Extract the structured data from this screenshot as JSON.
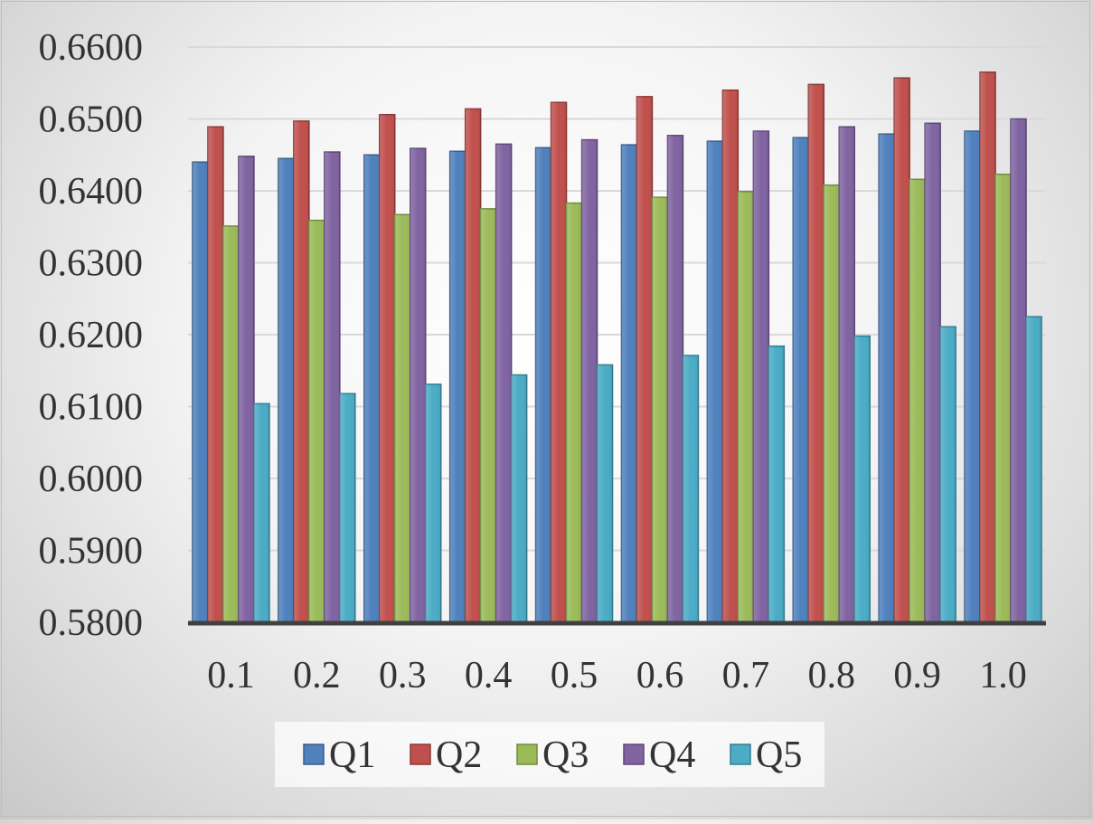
{
  "chart_data": {
    "type": "bar",
    "categories": [
      "0.1",
      "0.2",
      "0.3",
      "0.4",
      "0.5",
      "0.6",
      "0.7",
      "0.8",
      "0.9",
      "1.0"
    ],
    "series": [
      {
        "name": "Q1",
        "values": [
          0.644,
          0.6445,
          0.645,
          0.6455,
          0.646,
          0.6464,
          0.6469,
          0.6474,
          0.6479,
          0.6483
        ],
        "color": "#4F81BD",
        "border": "#385D8A"
      },
      {
        "name": "Q2",
        "values": [
          0.6489,
          0.6497,
          0.6506,
          0.6514,
          0.6523,
          0.6531,
          0.654,
          0.6548,
          0.6557,
          0.6565
        ],
        "color": "#C0504D",
        "border": "#8C3836"
      },
      {
        "name": "Q3",
        "values": [
          0.6351,
          0.6359,
          0.6367,
          0.6375,
          0.6383,
          0.6391,
          0.6399,
          0.6408,
          0.6416,
          0.6423
        ],
        "color": "#9BBB59",
        "border": "#71893F"
      },
      {
        "name": "Q4",
        "values": [
          0.6448,
          0.6454,
          0.6459,
          0.6465,
          0.6471,
          0.6477,
          0.6483,
          0.6489,
          0.6494,
          0.65
        ],
        "color": "#8064A2",
        "border": "#5C4776"
      },
      {
        "name": "Q5",
        "values": [
          0.6104,
          0.6118,
          0.6131,
          0.6144,
          0.6158,
          0.6171,
          0.6184,
          0.6198,
          0.6211,
          0.6225
        ],
        "color": "#4BACC6",
        "border": "#357D91"
      }
    ],
    "yticks": [
      "0.5800",
      "0.5900",
      "0.6000",
      "0.6100",
      "0.6200",
      "0.6300",
      "0.6400",
      "0.6500",
      "0.6600"
    ],
    "ylim": [
      0.58,
      0.66
    ],
    "grid": true,
    "legend_position": "bottom"
  }
}
